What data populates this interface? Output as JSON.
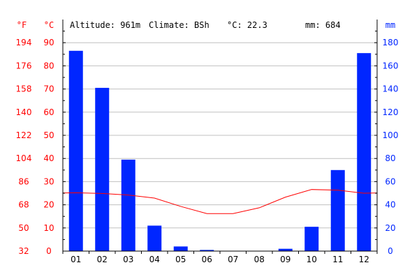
{
  "header": {
    "altitude_label": "Altitude: 961m",
    "climate_label": "Climate: BSh",
    "temp_label": "°C: 22.3",
    "precip_label": "mm: 684"
  },
  "colors": {
    "temperature": "#ff0000",
    "precipitation": "#0026ff",
    "grid": "#c0c0c0",
    "axis": "#000000"
  },
  "chart_data": {
    "type": "bar",
    "title": "",
    "categories": [
      "01",
      "02",
      "03",
      "04",
      "05",
      "06",
      "07",
      "08",
      "09",
      "10",
      "11",
      "12"
    ],
    "series": [
      {
        "name": "mm",
        "type": "bar",
        "axis": "right",
        "values": [
          173,
          141,
          79,
          22,
          4,
          1,
          0,
          0,
          2,
          21,
          70,
          171
        ]
      },
      {
        "name": "°C",
        "type": "line",
        "axis": "left",
        "values": [
          25.2,
          24.9,
          24.2,
          22.9,
          19.3,
          16.2,
          16.2,
          18.7,
          23.3,
          26.6,
          26.3,
          25.0
        ]
      }
    ],
    "y_left_celsius": {
      "label": "°C",
      "ylim": [
        0,
        100
      ],
      "ticks": [
        "0",
        "10",
        "20",
        "30",
        "40",
        "50",
        "60",
        "70",
        "80",
        "90"
      ]
    },
    "y_left_fahrenheit": {
      "label": "°F",
      "ticks": [
        "32",
        "50",
        "68",
        "86",
        "104",
        "122",
        "140",
        "158",
        "176",
        "194"
      ]
    },
    "y_right": {
      "label": "mm",
      "ylim": [
        0,
        200
      ],
      "ticks": [
        "0",
        "20",
        "40",
        "60",
        "80",
        "100",
        "120",
        "140",
        "160",
        "180"
      ]
    },
    "grid": true
  }
}
